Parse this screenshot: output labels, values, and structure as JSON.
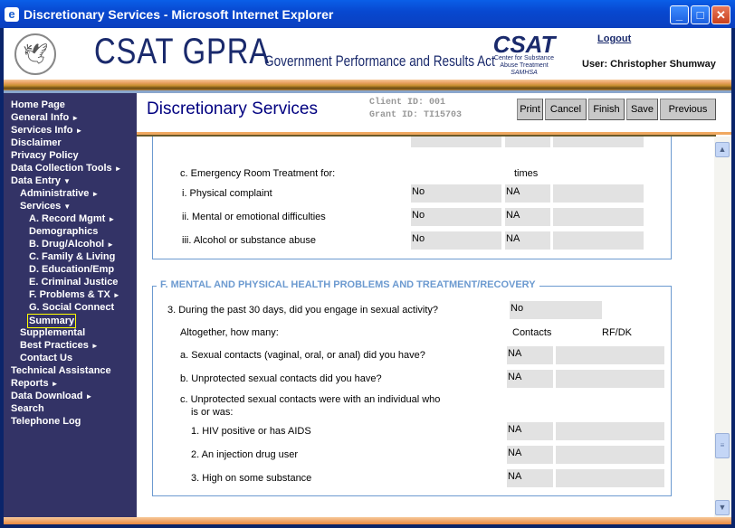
{
  "window": {
    "title": "Discretionary Services - Microsoft Internet Explorer",
    "icon": "ie-icon",
    "controls": [
      "minimize",
      "maximize",
      "close"
    ]
  },
  "header": {
    "brand": "CSAT GPRA",
    "brand_sub": "Government Performance and Results Act",
    "logo_big": "CSAT",
    "logo_line1": "Center for Substance",
    "logo_line2": "Abuse Treatment",
    "logo_line3": "SAMHSA",
    "logout": "Logout",
    "user": "User: Christopher Shumway"
  },
  "sidebar": {
    "items": [
      {
        "label": "Home Page",
        "level": 0
      },
      {
        "label": "General Info",
        "level": 0,
        "arrow": "►"
      },
      {
        "label": "Services Info",
        "level": 0,
        "arrow": "►"
      },
      {
        "label": "Disclaimer",
        "level": 0
      },
      {
        "label": "Privacy Policy",
        "level": 0
      },
      {
        "label": "Data Collection Tools",
        "level": 0,
        "arrow": "►"
      },
      {
        "label": "Data Entry",
        "level": 0,
        "arrow": "▼"
      },
      {
        "label": "Administrative",
        "level": 1,
        "arrow": "►"
      },
      {
        "label": "Services",
        "level": 1,
        "arrow": "▼"
      },
      {
        "label": "A. Record Mgmt",
        "level": 2,
        "arrow": "►"
      },
      {
        "label": "Demographics",
        "level": 2
      },
      {
        "label": "B. Drug/Alcohol",
        "level": 2,
        "arrow": "►"
      },
      {
        "label": "C. Family & Living",
        "level": 2
      },
      {
        "label": "D. Education/Emp",
        "level": 2
      },
      {
        "label": "E. Criminal Justice",
        "level": 2
      },
      {
        "label": "F. Problems & TX",
        "level": 2,
        "arrow": "►"
      },
      {
        "label": "G. Social Connect",
        "level": 2
      },
      {
        "label": "Summary",
        "level": 2,
        "selected": true
      },
      {
        "label": "Supplemental",
        "level": 1
      },
      {
        "label": "Best Practices",
        "level": 1,
        "arrow": "►"
      },
      {
        "label": "Contact Us",
        "level": 1
      },
      {
        "label": "Technical Assistance",
        "level": 0
      },
      {
        "label": "Reports",
        "level": 0,
        "arrow": "►"
      },
      {
        "label": "Data Download",
        "level": 0,
        "arrow": "►"
      },
      {
        "label": "Search",
        "level": 0
      },
      {
        "label": "Telephone Log",
        "level": 0
      }
    ]
  },
  "main": {
    "title": "Discretionary Services",
    "client_id": "Client ID: 001",
    "grant_id": "Grant ID: TI15703",
    "buttons": [
      "Print",
      "Cancel",
      "Finish",
      "Save",
      "Previous"
    ]
  },
  "section_e": {
    "c_label": "c. Emergency Room Treatment for:",
    "times_header": "times",
    "rows": [
      {
        "label": "i. Physical complaint",
        "v1": "No",
        "v2": "NA",
        "v3": ""
      },
      {
        "label": "ii. Mental or emotional difficulties",
        "v1": "No",
        "v2": "NA",
        "v3": ""
      },
      {
        "label": "iii. Alcohol or substance abuse",
        "v1": "No",
        "v2": "NA",
        "v3": ""
      }
    ]
  },
  "section_f": {
    "legend": "F. MENTAL AND PHYSICAL HEALTH PROBLEMS AND TREATMENT/RECOVERY",
    "q3": "3. During the past 30 days, did you engage in sexual activity?",
    "q3_value": "No",
    "altogether": "Altogether, how many:",
    "col_contacts": "Contacts",
    "col_rfdk": "RF/DK",
    "a": {
      "label": "a. Sexual contacts (vaginal, oral, or anal) did you have?",
      "v1": "NA",
      "v2": ""
    },
    "b": {
      "label": "b. Unprotected sexual contacts did you have?",
      "v1": "NA",
      "v2": ""
    },
    "c_line1": "c. Unprotected sexual contacts were with an individual who",
    "c_line2": "is or was:",
    "sub": [
      {
        "label": "1. HIV positive or has AIDS",
        "v1": "NA",
        "v2": ""
      },
      {
        "label": "2. An injection drug user",
        "v1": "NA",
        "v2": ""
      },
      {
        "label": "3. High on some substance",
        "v1": "NA",
        "v2": ""
      }
    ]
  },
  "colors": {
    "sidebar": "#333366",
    "title_blue": "#000080",
    "legend": "#6c9ad0",
    "field": "#e2e2e2",
    "selected_outline": "#ffff00"
  }
}
